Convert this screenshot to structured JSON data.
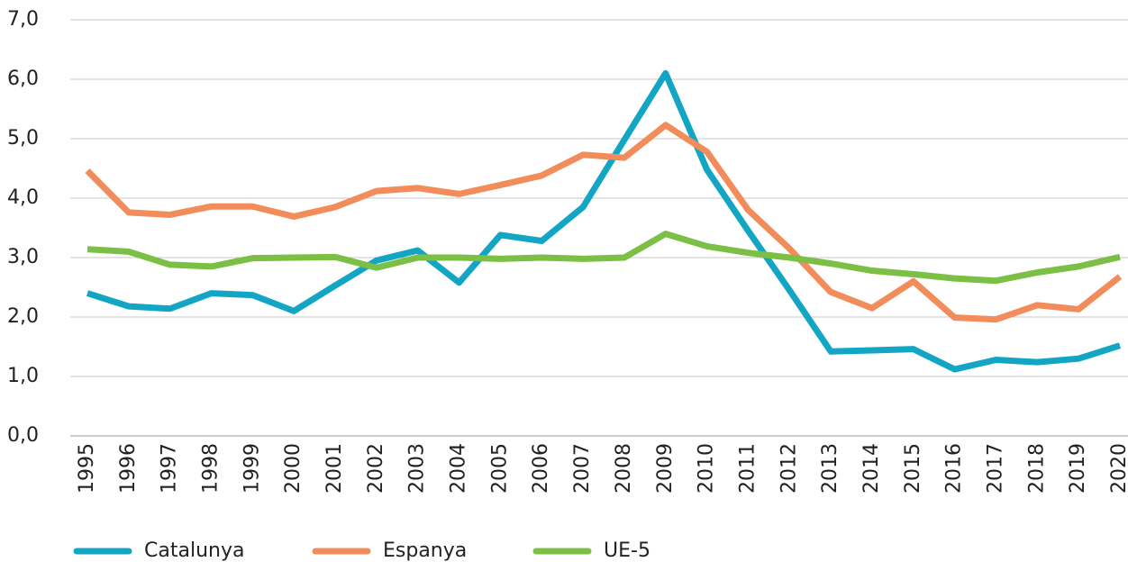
{
  "chart_data": {
    "type": "line",
    "categories": [
      "1995",
      "1996",
      "1997",
      "1998",
      "1999",
      "2000",
      "2001",
      "2002",
      "2003",
      "2004",
      "2005",
      "2006",
      "2007",
      "2008",
      "2009",
      "2010",
      "2011",
      "2012",
      "2013",
      "2014",
      "2015",
      "2016",
      "2017",
      "2018",
      "2019",
      "2020"
    ],
    "series": [
      {
        "name": "Catalunya",
        "color": "#13a5c4",
        "values": [
          2.4,
          2.18,
          2.14,
          2.4,
          2.37,
          2.1,
          2.53,
          2.95,
          3.12,
          2.58,
          3.38,
          3.28,
          3.85,
          4.98,
          6.1,
          4.48,
          3.45,
          2.45,
          1.42,
          1.44,
          1.46,
          1.12,
          1.28,
          1.24,
          1.3,
          1.52
        ]
      },
      {
        "name": "Espanya",
        "color": "#f28c5a",
        "values": [
          4.46,
          3.76,
          3.72,
          3.86,
          3.86,
          3.69,
          3.85,
          4.12,
          4.17,
          4.07,
          4.22,
          4.38,
          4.73,
          4.68,
          5.23,
          4.78,
          3.8,
          3.15,
          2.42,
          2.15,
          2.6,
          1.99,
          1.96,
          2.2,
          2.13,
          2.68
        ]
      },
      {
        "name": "UE-5",
        "color": "#7bbf45",
        "values": [
          3.14,
          3.1,
          2.88,
          2.85,
          2.99,
          3.0,
          3.01,
          2.83,
          3.0,
          3.0,
          2.98,
          3.0,
          2.98,
          3.0,
          3.4,
          3.19,
          3.08,
          3.0,
          2.9,
          2.78,
          2.72,
          2.65,
          2.61,
          2.75,
          2.85,
          3.01
        ]
      }
    ],
    "ylim": [
      0,
      7
    ],
    "yticks": [
      {
        "value": 0,
        "label": "0,0"
      },
      {
        "value": 1,
        "label": "1,0"
      },
      {
        "value": 2,
        "label": "2,0"
      },
      {
        "value": 3,
        "label": "3,0"
      },
      {
        "value": 4,
        "label": "4,0"
      },
      {
        "value": 5,
        "label": "5,0"
      },
      {
        "value": 6,
        "label": "6,0"
      },
      {
        "value": 7,
        "label": "7,0"
      }
    ],
    "grid": true,
    "legend": "bottom"
  }
}
